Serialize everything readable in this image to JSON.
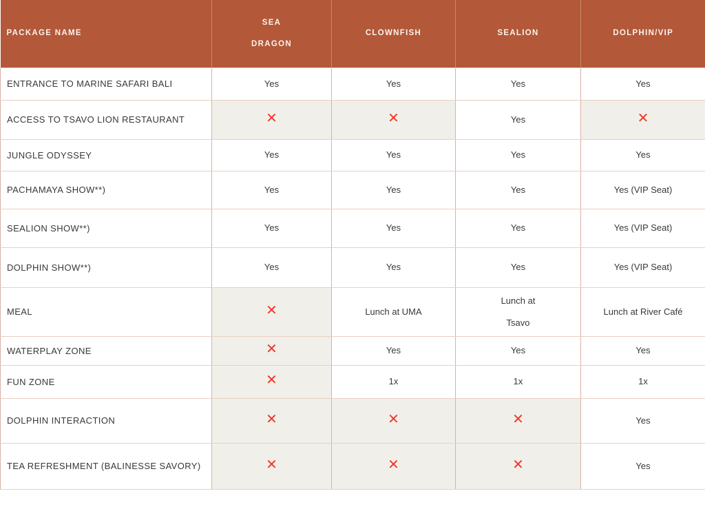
{
  "colors": {
    "header_bg": "#b35838",
    "header_text": "#faf3ee",
    "body_text": "#383838",
    "na_cell_bg": "#f1efe9",
    "border_vertical": "#d7b2a4",
    "border_horizontal": "#e9cfc2",
    "cross_red": "#ee382e"
  },
  "icons": {
    "cross": {
      "name": "cross-icon",
      "glyph": "✕",
      "color": "#ee382e",
      "meaning": "not included"
    }
  },
  "table": {
    "columns": [
      "PACKAGE NAME",
      "SEA\nDRAGON",
      "CLOWNFISH",
      "SEALION",
      "DOLPHIN/VIP"
    ],
    "rows": [
      {
        "name": "ENTRANCE TO MARINE SAFARI BALI",
        "cells": [
          "Yes",
          "Yes",
          "Yes",
          "Yes"
        ]
      },
      {
        "name": "ACCESS TO TSAVO LION RESTAURANT",
        "cells": [
          null,
          null,
          "Yes",
          null
        ]
      },
      {
        "name": "JUNGLE ODYSSEY",
        "cells": [
          "Yes",
          "Yes",
          "Yes",
          "Yes"
        ]
      },
      {
        "name": "PACHAMAYA SHOW**)",
        "cells": [
          "Yes",
          "Yes",
          "Yes",
          "Yes (VIP Seat)"
        ]
      },
      {
        "name": "SEALION SHOW**)",
        "cells": [
          "Yes",
          "Yes",
          "Yes",
          "Yes (VIP Seat)"
        ]
      },
      {
        "name": "DOLPHIN SHOW**)",
        "cells": [
          "Yes",
          "Yes",
          "Yes",
          "Yes (VIP Seat)"
        ]
      },
      {
        "name": "MEAL",
        "cells": [
          null,
          "Lunch at UMA",
          "Lunch at\nTsavo",
          "Lunch at River Café"
        ]
      },
      {
        "name": "WATERPLAY ZONE",
        "cells": [
          null,
          "Yes",
          "Yes",
          "Yes"
        ]
      },
      {
        "name": "FUN ZONE",
        "cells": [
          null,
          "1x",
          "1x",
          "1x"
        ]
      },
      {
        "name": "DOLPHIN INTERACTION",
        "cells": [
          null,
          null,
          null,
          "Yes"
        ]
      },
      {
        "name": "TEA REFRESHMENT (BALINESSE SAVORY)",
        "cells": [
          null,
          null,
          null,
          "Yes"
        ]
      }
    ]
  }
}
